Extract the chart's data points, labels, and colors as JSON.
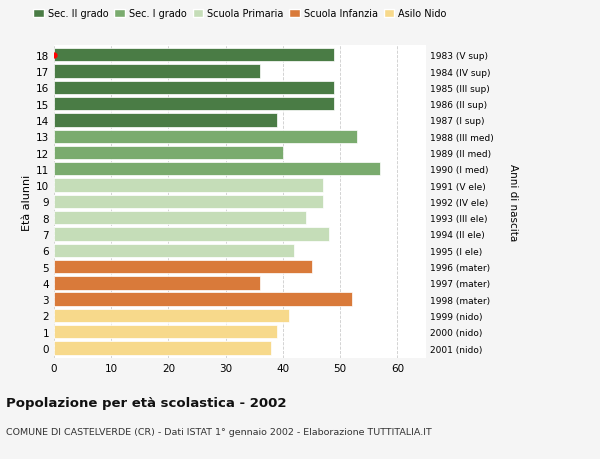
{
  "ages": [
    18,
    17,
    16,
    15,
    14,
    13,
    12,
    11,
    10,
    9,
    8,
    7,
    6,
    5,
    4,
    3,
    2,
    1,
    0
  ],
  "values": [
    49,
    36,
    49,
    49,
    39,
    53,
    40,
    57,
    47,
    47,
    44,
    48,
    42,
    45,
    36,
    52,
    41,
    39,
    38
  ],
  "right_labels": [
    "1983 (V sup)",
    "1984 (IV sup)",
    "1985 (III sup)",
    "1986 (II sup)",
    "1987 (I sup)",
    "1988 (III med)",
    "1989 (II med)",
    "1990 (I med)",
    "1991 (V ele)",
    "1992 (IV ele)",
    "1993 (III ele)",
    "1994 (II ele)",
    "1995 (I ele)",
    "1996 (mater)",
    "1997 (mater)",
    "1998 (mater)",
    "1999 (nido)",
    "2000 (nido)",
    "2001 (nido)"
  ],
  "colors": [
    "#4a7c45",
    "#4a7c45",
    "#4a7c45",
    "#4a7c45",
    "#4a7c45",
    "#7aab6e",
    "#7aab6e",
    "#7aab6e",
    "#c5ddb8",
    "#c5ddb8",
    "#c5ddb8",
    "#c5ddb8",
    "#c5ddb8",
    "#d97a3a",
    "#d97a3a",
    "#d97a3a",
    "#f7d98b",
    "#f7d98b",
    "#f7d98b"
  ],
  "legend_labels": [
    "Sec. II grado",
    "Sec. I grado",
    "Scuola Primaria",
    "Scuola Infanzia",
    "Asilo Nido"
  ],
  "legend_colors": [
    "#4a7c45",
    "#7aab6e",
    "#c5ddb8",
    "#d97a3a",
    "#f7d98b"
  ],
  "ylabel": "Età alunni",
  "right_ylabel": "Anni di nascita",
  "xlabel_ticks": [
    0,
    10,
    20,
    30,
    40,
    50,
    60
  ],
  "xlim": [
    0,
    65
  ],
  "title": "Popolazione per età scolastica - 2002",
  "subtitle": "COMUNE DI CASTELVERDE (CR) - Dati ISTAT 1° gennaio 2002 - Elaborazione TUTTITALIA.IT",
  "bg_color": "#f5f5f5",
  "plot_bg_color": "#ffffff",
  "bar_height": 0.82,
  "grid_color": "#cccccc"
}
